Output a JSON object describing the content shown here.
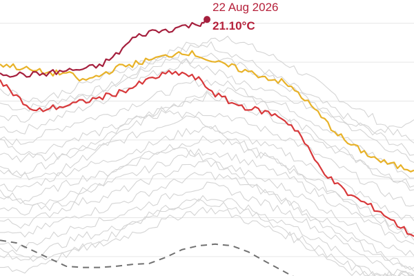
{
  "chart_data": {
    "type": "line",
    "title": "",
    "xlabel": "",
    "ylabel": "",
    "ylim": [
      14.5,
      21.6
    ],
    "grid": {
      "horizontal": true,
      "y_values": [
        21.0,
        20.0,
        19.0,
        18.0,
        17.0,
        16.0,
        15.0
      ]
    },
    "annotation": {
      "date": "22 Aug 2026",
      "value_text": "21.10°C",
      "x": 50,
      "y": 21.1
    },
    "colors": {
      "current_year": "#a51f3d",
      "record_year": "#e8b228",
      "second_year": "#d8383a",
      "average": "#707070",
      "past_years": "#d4d4d4",
      "grid": "#e6e6e6"
    },
    "highlighted_series": [
      {
        "role": "current_year",
        "x": [
          0,
          4,
          8,
          12,
          16,
          20,
          24,
          28,
          32,
          36,
          40,
          44,
          48,
          50
        ],
        "values": [
          19.72,
          19.68,
          19.68,
          19.72,
          19.78,
          19.82,
          19.9,
          20.18,
          20.6,
          20.78,
          20.82,
          20.92,
          20.98,
          21.1
        ]
      },
      {
        "role": "record_year",
        "x": [
          0,
          4,
          8,
          12,
          16,
          20,
          24,
          28,
          32,
          36,
          40,
          44,
          48,
          52,
          56,
          60,
          64,
          68,
          72,
          76,
          80,
          84,
          88,
          92,
          96,
          100
        ],
        "values": [
          19.95,
          19.88,
          19.78,
          19.72,
          19.72,
          19.52,
          19.65,
          19.85,
          19.95,
          20.05,
          20.15,
          20.28,
          20.18,
          19.98,
          19.88,
          19.75,
          19.62,
          19.5,
          19.22,
          18.78,
          18.32,
          17.92,
          17.68,
          17.45,
          17.32,
          17.22
        ]
      },
      {
        "role": "second_year",
        "x": [
          0,
          4,
          8,
          12,
          16,
          20,
          24,
          28,
          32,
          36,
          40,
          44,
          48,
          52,
          56,
          60,
          64,
          68,
          72,
          76,
          80,
          84,
          88,
          92,
          96,
          100
        ],
        "values": [
          19.55,
          19.12,
          18.72,
          18.82,
          18.88,
          18.98,
          19.08,
          19.2,
          19.35,
          19.55,
          19.7,
          19.72,
          19.55,
          19.18,
          18.95,
          18.82,
          18.72,
          18.58,
          18.22,
          17.48,
          16.98,
          16.62,
          16.38,
          16.15,
          15.82,
          15.52
        ]
      },
      {
        "role": "average",
        "x": [
          0,
          4,
          8,
          12,
          16,
          20,
          24,
          28,
          32,
          36,
          40,
          44,
          48,
          52,
          56,
          60,
          64,
          68,
          72
        ],
        "values": [
          15.42,
          15.35,
          15.15,
          14.95,
          14.75,
          14.72,
          14.72,
          14.75,
          14.8,
          14.82,
          14.98,
          15.18,
          15.28,
          15.32,
          15.28,
          15.12,
          14.88,
          14.65,
          14.42
        ]
      }
    ],
    "past_years": [
      {
        "x": [
          0,
          5,
          10,
          15,
          20,
          25,
          30,
          35,
          40,
          45,
          50,
          55,
          60,
          65,
          70,
          75,
          80,
          85,
          90,
          95,
          100
        ],
        "values": [
          18.95,
          18.8,
          18.88,
          19.05,
          19.18,
          19.32,
          19.52,
          19.78,
          20.02,
          20.32,
          20.52,
          20.68,
          20.42,
          20.18,
          19.92,
          19.58,
          19.22,
          18.88,
          18.58,
          18.22,
          17.92
        ]
      },
      {
        "x": [
          0,
          5,
          10,
          15,
          20,
          25,
          30,
          35,
          40,
          45,
          50,
          55,
          60,
          65,
          70,
          75,
          80,
          85,
          90,
          95,
          100
        ],
        "values": [
          18.62,
          18.52,
          18.72,
          18.92,
          19.08,
          19.28,
          19.62,
          19.92,
          20.22,
          20.42,
          20.48,
          20.28,
          20.02,
          19.72,
          19.42,
          19.12,
          18.82,
          18.52,
          18.22,
          17.92,
          17.62
        ]
      },
      {
        "x": [
          0,
          5,
          10,
          15,
          20,
          25,
          30,
          35,
          40,
          45,
          50,
          55,
          60,
          65,
          70,
          75,
          80,
          85,
          90,
          95,
          100
        ],
        "values": [
          18.32,
          18.22,
          18.42,
          18.62,
          18.82,
          19.02,
          19.32,
          19.62,
          19.82,
          20.02,
          20.22,
          20.02,
          19.82,
          19.62,
          19.32,
          19.02,
          18.62,
          18.32,
          18.02,
          17.72,
          17.42
        ]
      },
      {
        "x": [
          0,
          5,
          10,
          15,
          20,
          25,
          30,
          35,
          40,
          45,
          50,
          55,
          60,
          65,
          70,
          75,
          80,
          85,
          90,
          95,
          100
        ],
        "values": [
          18.02,
          17.92,
          18.12,
          18.32,
          18.52,
          18.62,
          18.82,
          19.02,
          19.22,
          19.42,
          19.52,
          19.42,
          19.22,
          19.02,
          18.82,
          18.52,
          18.22,
          17.92,
          17.62,
          17.32,
          17.02
        ]
      },
      {
        "x": [
          0,
          5,
          10,
          15,
          20,
          25,
          30,
          35,
          40,
          45,
          50,
          55,
          60,
          65,
          70,
          75,
          80,
          85,
          90,
          95,
          100
        ],
        "values": [
          17.62,
          17.52,
          17.72,
          17.92,
          18.12,
          18.22,
          18.42,
          18.62,
          18.82,
          19.02,
          19.12,
          19.02,
          18.82,
          18.62,
          18.42,
          18.12,
          17.82,
          17.52,
          17.22,
          16.92,
          16.72
        ]
      },
      {
        "x": [
          0,
          5,
          10,
          15,
          20,
          25,
          30,
          35,
          40,
          45,
          50,
          55,
          60,
          65,
          70,
          75,
          80,
          85,
          90,
          95,
          100
        ],
        "values": [
          17.22,
          17.12,
          17.32,
          17.52,
          17.72,
          17.82,
          18.02,
          18.22,
          18.42,
          18.62,
          18.72,
          18.62,
          18.42,
          18.22,
          18.02,
          17.72,
          17.42,
          17.12,
          16.82,
          16.52,
          16.32
        ]
      },
      {
        "x": [
          0,
          5,
          10,
          15,
          20,
          25,
          30,
          35,
          40,
          45,
          50,
          55,
          60,
          65,
          70,
          75,
          80,
          85,
          90,
          95,
          100
        ],
        "values": [
          16.82,
          16.72,
          16.92,
          17.12,
          17.32,
          17.42,
          17.62,
          17.82,
          18.02,
          18.22,
          18.32,
          18.22,
          18.02,
          17.82,
          17.62,
          17.32,
          17.02,
          16.72,
          16.42,
          16.12,
          15.92
        ]
      },
      {
        "x": [
          0,
          5,
          10,
          15,
          20,
          25,
          30,
          35,
          40,
          45,
          50,
          55,
          60,
          65,
          70,
          75,
          80,
          85,
          90,
          95,
          100
        ],
        "values": [
          16.52,
          16.42,
          16.62,
          16.82,
          17.02,
          17.12,
          17.32,
          17.52,
          17.72,
          17.92,
          18.02,
          17.92,
          17.72,
          17.52,
          17.32,
          17.02,
          16.72,
          16.42,
          16.12,
          15.82,
          15.62
        ]
      },
      {
        "x": [
          0,
          5,
          10,
          15,
          20,
          25,
          30,
          35,
          40,
          45,
          50,
          55,
          60,
          65,
          70,
          75,
          80,
          85,
          90,
          95,
          100
        ],
        "values": [
          16.22,
          16.12,
          16.32,
          16.52,
          16.72,
          16.82,
          17.02,
          17.22,
          17.42,
          17.62,
          17.72,
          17.62,
          17.42,
          17.22,
          17.02,
          16.72,
          16.42,
          16.12,
          15.82,
          15.52,
          15.32
        ]
      },
      {
        "x": [
          0,
          5,
          10,
          15,
          20,
          25,
          30,
          35,
          40,
          45,
          50,
          55,
          60,
          65,
          70,
          75,
          80,
          85,
          90,
          95,
          100
        ],
        "values": [
          15.92,
          15.82,
          16.02,
          16.22,
          16.42,
          16.52,
          16.72,
          16.92,
          17.12,
          17.32,
          17.42,
          17.32,
          17.12,
          16.92,
          16.72,
          16.42,
          16.12,
          15.82,
          15.52,
          15.22,
          15.02
        ]
      },
      {
        "x": [
          0,
          5,
          10,
          15,
          20,
          25,
          30,
          35,
          40,
          45,
          50,
          55,
          60,
          65,
          70,
          75,
          80,
          85,
          90,
          95,
          100
        ],
        "values": [
          15.62,
          15.52,
          15.72,
          15.92,
          16.12,
          16.22,
          16.42,
          16.62,
          16.82,
          17.02,
          17.12,
          17.02,
          16.82,
          16.62,
          16.42,
          16.12,
          15.82,
          15.52,
          15.22,
          14.92,
          14.72
        ]
      },
      {
        "x": [
          0,
          5,
          10,
          15,
          20,
          25,
          30,
          35,
          40,
          45,
          50,
          55,
          60,
          65,
          70,
          75,
          80,
          85,
          90,
          95,
          100
        ],
        "values": [
          15.32,
          15.22,
          15.42,
          15.62,
          15.82,
          15.92,
          16.12,
          16.32,
          16.52,
          16.72,
          16.82,
          16.72,
          16.52,
          16.32,
          16.12,
          15.82,
          15.52,
          15.22,
          14.92,
          14.62,
          14.52
        ]
      },
      {
        "x": [
          0,
          5,
          10,
          15,
          20,
          25,
          30,
          35,
          40,
          45,
          50,
          55,
          60,
          65,
          70,
          75,
          80,
          85,
          90,
          95,
          100
        ],
        "values": [
          15.02,
          14.92,
          15.12,
          15.32,
          15.52,
          15.62,
          15.82,
          16.02,
          16.22,
          16.42,
          16.52,
          16.42,
          16.22,
          16.02,
          15.82,
          15.52,
          15.22,
          14.92,
          14.62,
          14.52,
          14.52
        ]
      },
      {
        "x": [
          0,
          5,
          10,
          15,
          20,
          25,
          30,
          35,
          40,
          45,
          50,
          55,
          60,
          65,
          70,
          75,
          80,
          85,
          90,
          95,
          100
        ],
        "values": [
          14.72,
          14.62,
          14.82,
          15.02,
          15.22,
          15.32,
          15.52,
          15.72,
          15.92,
          16.12,
          16.22,
          16.12,
          15.92,
          15.72,
          15.52,
          15.22,
          14.92,
          14.62,
          14.52,
          14.52,
          14.52
        ]
      },
      {
        "x": [
          0,
          5,
          10,
          15,
          20,
          25,
          30,
          35,
          40,
          45,
          50,
          55,
          60,
          65,
          70,
          75,
          80,
          85,
          90,
          95,
          100
        ],
        "values": [
          16.72,
          16.42,
          16.22,
          16.32,
          16.62,
          16.92,
          17.32,
          17.62,
          17.82,
          17.72,
          17.52,
          17.22,
          16.92,
          16.62,
          16.32,
          16.02,
          15.72,
          15.42,
          15.12,
          14.82,
          14.62
        ]
      },
      {
        "x": [
          0,
          5,
          10,
          15,
          20,
          25,
          30,
          35,
          40,
          45,
          50,
          55,
          60,
          65,
          70,
          75,
          80,
          85,
          90,
          95,
          100
        ],
        "values": [
          17.32,
          17.12,
          17.02,
          17.22,
          17.52,
          17.82,
          18.22,
          18.52,
          18.72,
          18.62,
          18.42,
          18.12,
          17.82,
          17.52,
          17.22,
          16.92,
          16.62,
          16.32,
          16.02,
          15.72,
          15.42
        ]
      },
      {
        "x": [
          0,
          5,
          10,
          15,
          20,
          25,
          30,
          35,
          40,
          45,
          50,
          55,
          60,
          65,
          70,
          75,
          80,
          85,
          90,
          95,
          100
        ],
        "values": [
          18.02,
          17.72,
          17.52,
          17.62,
          17.82,
          18.02,
          18.32,
          18.62,
          18.82,
          19.02,
          19.22,
          19.32,
          19.12,
          18.82,
          18.52,
          18.22,
          17.92,
          17.62,
          17.32,
          17.02,
          16.82
        ]
      },
      {
        "x": [
          0,
          5,
          10,
          15,
          20,
          25,
          30,
          35,
          40,
          45,
          50,
          55,
          60,
          65,
          70,
          75,
          80,
          85,
          90,
          95,
          100
        ],
        "values": [
          15.22,
          15.02,
          14.92,
          15.02,
          15.22,
          15.42,
          15.72,
          16.02,
          16.22,
          16.32,
          16.42,
          16.32,
          16.12,
          15.92,
          15.62,
          15.32,
          15.02,
          14.72,
          14.52,
          14.52,
          14.52
        ]
      },
      {
        "x": [
          0,
          5,
          10,
          15,
          20,
          25,
          30,
          35,
          40,
          45,
          50,
          55,
          60,
          65,
          70,
          75,
          80,
          85,
          90,
          95,
          100
        ],
        "values": [
          19.32,
          19.12,
          19.02,
          19.22,
          19.42,
          19.62,
          19.82,
          20.02,
          20.12,
          20.02,
          19.82,
          19.62,
          19.42,
          19.22,
          19.02,
          18.82,
          18.62,
          18.42,
          18.22,
          18.32,
          18.52
        ]
      }
    ]
  }
}
